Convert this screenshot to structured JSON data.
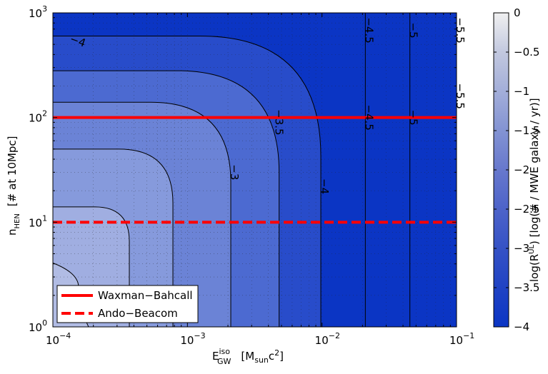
{
  "chart_data": {
    "type": "contour",
    "x": {
      "scale": "log",
      "lim": [
        0.0001,
        0.1
      ],
      "tick_mantissa": "10",
      "tick_exponents": [
        "-4",
        "-3",
        "-2",
        "-1"
      ],
      "label_main": "E",
      "label_sup": "iso",
      "label_sub": "GW",
      "label_units_open": "[M",
      "label_units_sub": "sun",
      "label_units_c": "c",
      "label_units_sup": "2",
      "label_units_close": "]"
    },
    "y": {
      "scale": "log",
      "lim": [
        1,
        1000
      ],
      "tick_mantissa": "10",
      "tick_exponents": [
        "0",
        "1",
        "2",
        "3"
      ],
      "label_main": "n",
      "label_sub": "HEN",
      "label_rest": "[# at 10Mpc]"
    },
    "colorbar": {
      "lim": [
        -4,
        0
      ],
      "ticks": [
        "0",
        "−0.5",
        "−1",
        "−1.5",
        "−2",
        "−2.5",
        "−3",
        "−3.5",
        "−4"
      ],
      "tick_values": [
        0,
        -0.5,
        -1,
        -1.5,
        -2,
        -2.5,
        -3,
        -3.5,
        -4
      ],
      "label_pre": "log(R",
      "label_sup": "UL",
      "label_post": ") [log(# / MWE galaxy / yr)]",
      "color_top": "#f0f0f0",
      "color_bottom": "#0b35c4"
    },
    "contour_levels": [
      -5.5,
      -5,
      -4.5,
      -4,
      -3.5,
      -3,
      -2.5,
      -2
    ],
    "contour_asymptotes_x": {
      "-5.5": 0.1,
      "-5": 0.045,
      "-4.5": 0.021,
      "-4": 0.0098,
      "-3.5": 0.0048,
      "-3": 0.0021,
      "-2.5": 0.00078,
      "-2": 0.00037
    },
    "contour_asymptotes_y": {
      "-4": 600,
      "-3.5": 280,
      "-3": 140,
      "-2.5": 50,
      "-2": 14
    },
    "contour_labels": [
      {
        "text": "−4",
        "level": -4,
        "x": 0.00015,
        "y": 500
      },
      {
        "text": "−4.5",
        "level": -4.5,
        "x": 0.021,
        "y": 680
      },
      {
        "text": "−5",
        "level": -5,
        "x": 0.045,
        "y": 680
      },
      {
        "text": "−5.5",
        "level": -5.5,
        "x": 0.1,
        "y": 680
      },
      {
        "text": "−3.5",
        "level": -3.5,
        "x": 0.0045,
        "y": 90
      },
      {
        "text": "−3",
        "level": -3,
        "x": 0.0021,
        "y": 30
      },
      {
        "text": "−4",
        "level": -4,
        "x": 0.0098,
        "y": 22
      },
      {
        "text": "−4.5",
        "level": -4.5,
        "x": 0.021,
        "y": 100
      },
      {
        "text": "−5",
        "level": -5,
        "x": 0.045,
        "y": 100
      },
      {
        "text": "−5.5",
        "level": -5.5,
        "x": 0.1,
        "y": 160
      }
    ],
    "series": [
      {
        "name": "Waxman−Bahcall",
        "y": 100,
        "color": "#ff0000",
        "style": "solid"
      },
      {
        "name": "Ando−Beacom",
        "y": 10,
        "color": "#ff0000",
        "style": "dashed"
      }
    ],
    "grid": true,
    "legend_position": "lower-left"
  }
}
